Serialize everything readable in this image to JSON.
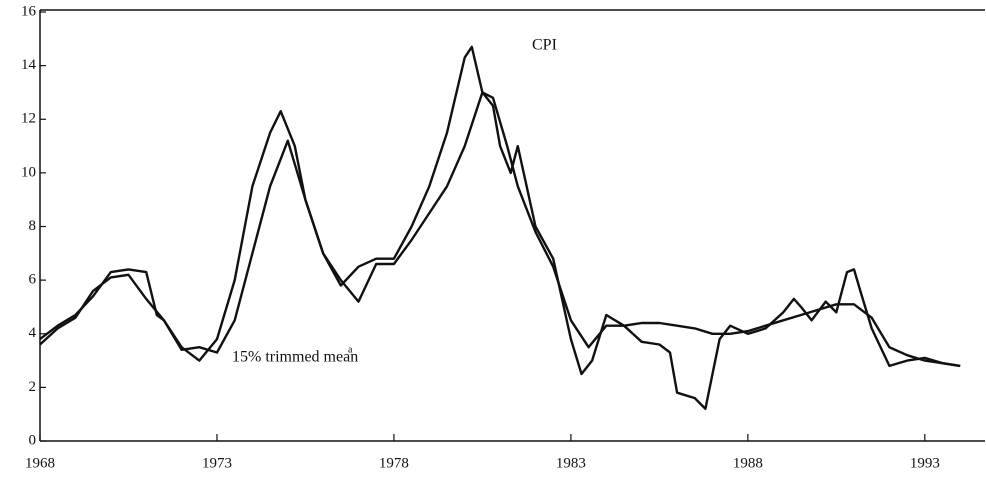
{
  "chart_data": {
    "type": "line",
    "series": [
      {
        "name": "CPI",
        "color": "#111111",
        "x": [
          1968.0,
          1968.5,
          1969.0,
          1969.5,
          1970.0,
          1970.5,
          1971.0,
          1971.5,
          1972.0,
          1972.5,
          1973.0,
          1973.5,
          1974.0,
          1974.5,
          1974.8,
          1975.2,
          1975.5,
          1976.0,
          1976.5,
          1977.0,
          1977.5,
          1978.0,
          1978.5,
          1979.0,
          1979.5,
          1980.0,
          1980.2,
          1980.5,
          1980.8,
          1981.0,
          1981.3,
          1981.5,
          1982.0,
          1982.5,
          1983.0,
          1983.3,
          1983.6,
          1984.0,
          1984.5,
          1985.0,
          1985.5,
          1985.8,
          1986.0,
          1986.5,
          1986.8,
          1987.2,
          1987.5,
          1988.0,
          1988.5,
          1989.0,
          1989.3,
          1989.5,
          1989.8,
          1990.2,
          1990.5,
          1990.8,
          1991.0,
          1991.2,
          1991.5,
          1992.0,
          1992.5,
          1993.0,
          1993.5,
          1994.0
        ],
        "values": [
          3.6,
          4.2,
          4.6,
          5.6,
          6.1,
          6.2,
          5.3,
          4.5,
          3.5,
          3.0,
          3.8,
          6.0,
          9.5,
          11.5,
          12.3,
          11.0,
          9.0,
          7.0,
          5.8,
          6.5,
          6.8,
          6.8,
          8.0,
          9.5,
          11.5,
          14.3,
          14.7,
          13.0,
          12.5,
          11.0,
          10.0,
          11.0,
          8.0,
          6.8,
          3.8,
          2.5,
          3.0,
          4.7,
          4.3,
          3.7,
          3.6,
          3.3,
          1.8,
          1.6,
          1.2,
          3.8,
          4.3,
          4.0,
          4.2,
          4.8,
          5.3,
          5.0,
          4.5,
          5.2,
          4.8,
          6.3,
          6.4,
          5.5,
          4.2,
          2.8,
          3.0,
          3.1,
          2.9,
          2.8
        ]
      },
      {
        "name": "15% trimmed mean",
        "color": "#111111",
        "x": [
          1968.0,
          1968.5,
          1969.0,
          1969.5,
          1970.0,
          1970.5,
          1971.0,
          1971.3,
          1971.5,
          1972.0,
          1972.5,
          1973.0,
          1973.5,
          1974.0,
          1974.5,
          1975.0,
          1975.5,
          1976.0,
          1976.5,
          1977.0,
          1977.5,
          1978.0,
          1978.5,
          1979.0,
          1979.5,
          1980.0,
          1980.5,
          1980.8,
          1981.2,
          1981.5,
          1982.0,
          1982.5,
          1983.0,
          1983.5,
          1984.0,
          1984.5,
          1985.0,
          1985.5,
          1986.0,
          1986.5,
          1987.0,
          1987.5,
          1988.0,
          1988.5,
          1989.0,
          1989.5,
          1990.0,
          1990.5,
          1991.0,
          1991.5,
          1992.0,
          1992.5,
          1993.0,
          1993.5,
          1994.0
        ],
        "values": [
          3.8,
          4.3,
          4.7,
          5.4,
          6.3,
          6.4,
          6.3,
          4.7,
          4.5,
          3.4,
          3.5,
          3.3,
          4.5,
          7.0,
          9.5,
          11.2,
          9.0,
          7.0,
          6.0,
          5.2,
          6.6,
          6.6,
          7.5,
          8.5,
          9.5,
          11.0,
          13.0,
          12.8,
          11.0,
          9.5,
          7.8,
          6.5,
          4.5,
          3.5,
          4.3,
          4.3,
          4.4,
          4.4,
          4.3,
          4.2,
          4.0,
          4.0,
          4.1,
          4.3,
          4.5,
          4.7,
          4.9,
          5.1,
          5.1,
          4.6,
          3.5,
          3.2,
          3.0,
          2.9,
          2.8
        ]
      }
    ],
    "footnote_mark": "a",
    "xlim": [
      1968,
      1994.7
    ],
    "xticks": [
      1968,
      1973,
      1978,
      1983,
      1988,
      1993
    ],
    "ylim": [
      0,
      16
    ],
    "yticks": [
      0,
      2,
      4,
      6,
      8,
      10,
      12,
      14,
      16
    ]
  }
}
